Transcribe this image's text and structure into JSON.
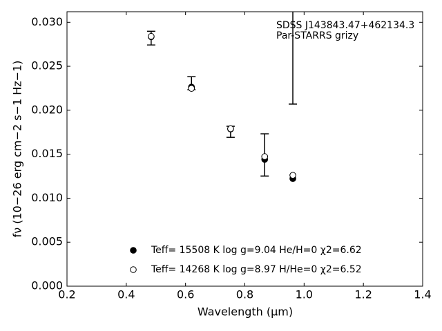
{
  "chart_data": {
    "type": "scatter",
    "annotations": [
      "SDSS J143843.47+462134.3",
      "Par-STARRS grizy"
    ],
    "xlabel": "Wavelength (μm)",
    "ylabel": "fν (10−26 erg cm−2 s−1 Hz−1)",
    "x": [
      0.484,
      0.62,
      0.752,
      0.867,
      0.962
    ],
    "values": [
      0.0282,
      0.02307,
      0.01755,
      0.01492,
      0.0305
    ],
    "errors": [
      0.00078,
      0.00074,
      0.00063,
      0.0024,
      0.0098
    ],
    "color": "#000000",
    "series": [
      {
        "name": "Teff= 15508 K  log g=9.04  He/H=0  χ2=6.62",
        "color": "#000000",
        "marker": "filled",
        "values": [
          0.02835,
          0.02264,
          0.01786,
          0.01441,
          0.01222
        ]
      },
      {
        "name": "Teff= 14268 K  log g=8.97  H/He=0  χ2=6.52",
        "color": "#000000",
        "marker": "open",
        "values": [
          0.0284,
          0.02248,
          0.0179,
          0.01473,
          0.01261
        ]
      }
    ],
    "xlim": [
      0.2,
      1.4
    ],
    "xticks": [
      0.2,
      0.4,
      0.6,
      0.8,
      {
        "value": 1.0,
        "label": "1.0"
      },
      1.2,
      1.4
    ],
    "ylim": [
      0,
      0.0312
    ],
    "yticks": [
      {
        "value": 0,
        "label": "0.000"
      },
      0.005,
      {
        "value": 0.01,
        "label": "0.010"
      },
      0.015,
      {
        "value": 0.02,
        "label": "0.020"
      },
      0.025,
      {
        "value": 0.03,
        "label": "0.030"
      }
    ],
    "legend": "lower center"
  }
}
